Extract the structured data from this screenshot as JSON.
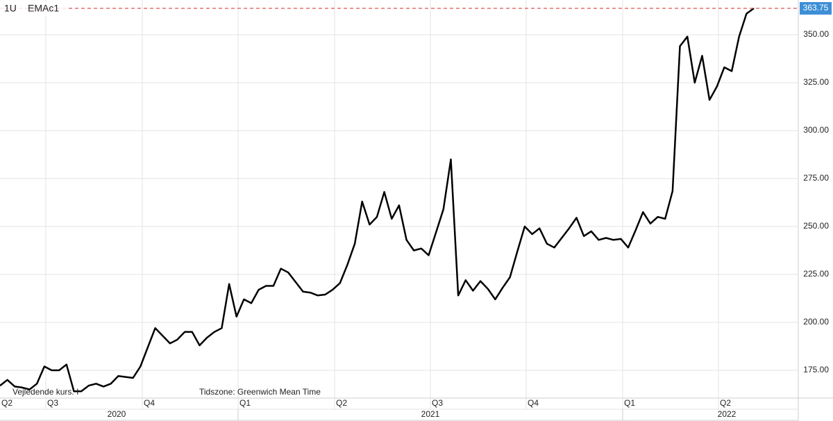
{
  "chart_data": {
    "type": "line",
    "legend": [
      "1U",
      "EMAc1"
    ],
    "footnotes": [
      "Vejledende kurs. I",
      "Tidszone: Greenwich Mean Time"
    ],
    "quarter_labels": [
      "Q2",
      "Q3",
      "Q4",
      "Q1",
      "Q2",
      "Q3",
      "Q4",
      "Q1",
      "Q2"
    ],
    "year_labels": [
      "2020",
      "2021",
      "2022"
    ],
    "series": [
      {
        "name": "EMAc1",
        "color": "#000000",
        "values": [
          167,
          170,
          166.5,
          166,
          165,
          168,
          177,
          175,
          175,
          178,
          164,
          164,
          167,
          168,
          166.5,
          168,
          172,
          171.5,
          171,
          177,
          187,
          197,
          193,
          189,
          191,
          195,
          195,
          188,
          192,
          195,
          197,
          220,
          203,
          212,
          210,
          217,
          219,
          219,
          228,
          226,
          221,
          216,
          215.5,
          214,
          214.5,
          217,
          220.5,
          230,
          241,
          263,
          251,
          255,
          268,
          254,
          261,
          243,
          237.5,
          238.5,
          235,
          247,
          259,
          285,
          214,
          222,
          216.5,
          221.5,
          217.5,
          212,
          218,
          223.5,
          237,
          250,
          246,
          249,
          241,
          239,
          244,
          249,
          254.5,
          245,
          247.5,
          243,
          244,
          243,
          243.5,
          239,
          248,
          257.5,
          251.5,
          255,
          254,
          268.5,
          344,
          349,
          325,
          339,
          316,
          323,
          333,
          331,
          349,
          361,
          363.75
        ]
      }
    ],
    "ylim": [
      160.5,
      368.1
    ],
    "yticks": [
      {
        "value": 175,
        "label": "175.00"
      },
      {
        "value": 200,
        "label": "200.00"
      },
      {
        "value": 225,
        "label": "225.00"
      },
      {
        "value": 250,
        "label": "250.00"
      },
      {
        "value": 275,
        "label": "275.00"
      },
      {
        "value": 300,
        "label": "300.00"
      },
      {
        "value": 325,
        "label": "325.00"
      },
      {
        "value": 350,
        "label": "350.00"
      }
    ],
    "last_line_color": "#d9534f",
    "last_label_color": "#3d8fd6",
    "grid": true
  }
}
